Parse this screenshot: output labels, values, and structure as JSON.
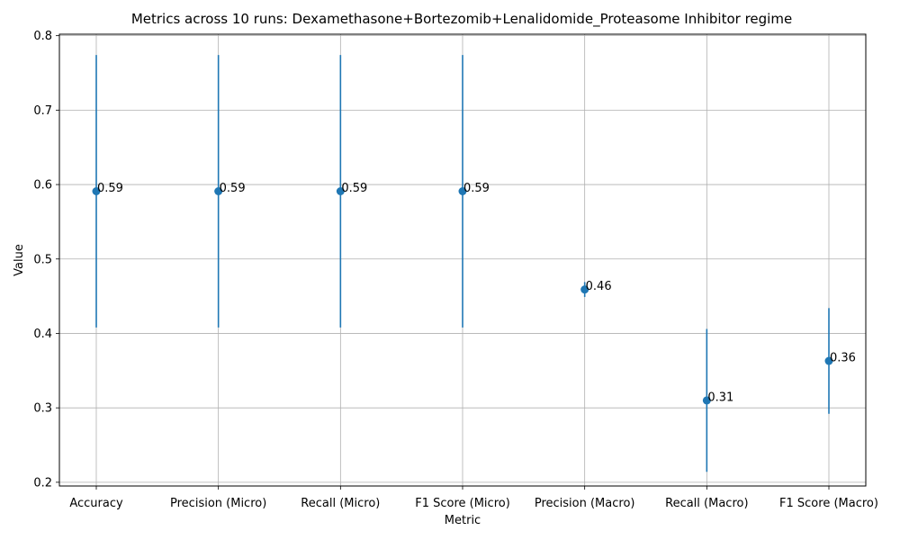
{
  "chart_data": {
    "type": "scatter",
    "title": "Metrics across 10 runs: Dexamethasone+Bortezomib+Lenalidomide_Proteasome Inhibitor regime",
    "xlabel": "Metric",
    "ylabel": "Value",
    "ylim": [
      0.195,
      0.802
    ],
    "yticks": [
      "0.2",
      "0.3",
      "0.4",
      "0.5",
      "0.6",
      "0.7",
      "0.8"
    ],
    "grid": true,
    "color": "#1f77b4",
    "categories": [
      "Accuracy",
      "Precision (Micro)",
      "Recall (Micro)",
      "F1 Score (Micro)",
      "Precision (Macro)",
      "Recall (Macro)",
      "F1 Score (Macro)"
    ],
    "values": [
      0.591,
      0.591,
      0.591,
      0.591,
      0.459,
      0.31,
      0.363
    ],
    "error": [
      0.183,
      0.183,
      0.183,
      0.183,
      0.01,
      0.096,
      0.071
    ],
    "labels": [
      "0.59",
      "0.59",
      "0.59",
      "0.59",
      "0.46",
      "0.31",
      "0.36"
    ]
  }
}
